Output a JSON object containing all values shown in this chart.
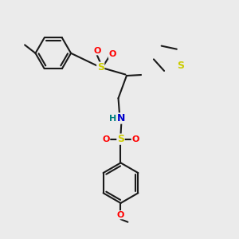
{
  "bg_color": "#ebebeb",
  "bond_color": "#1a1a1a",
  "bond_width": 1.5,
  "S_color": "#cccc00",
  "O_color": "#ff0000",
  "N_color": "#0000cc",
  "C_color": "#1a1a1a",
  "thiophene_S_color": "#cccc00",
  "fig_width": 3.0,
  "fig_height": 3.0,
  "dpi": 100,
  "xlim": [
    0,
    10
  ],
  "ylim": [
    0,
    10
  ]
}
